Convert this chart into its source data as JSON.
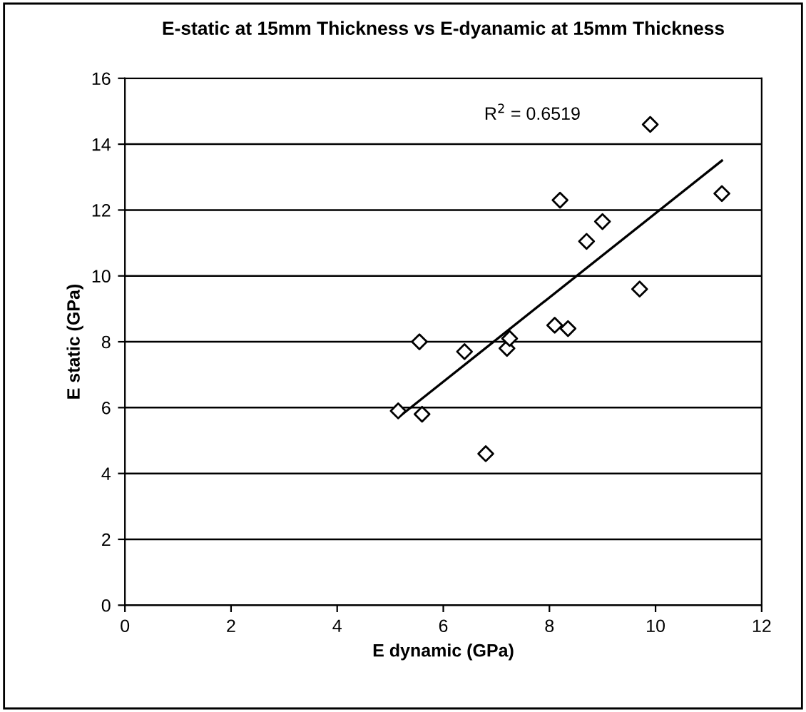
{
  "chart_data": {
    "type": "scatter",
    "title": "E-static at 15mm Thickness vs E-dyanamic at 15mm Thickness",
    "xlabel": "E dynamic (GPa)",
    "ylabel": "E static (GPa)",
    "series": [
      {
        "color": "#000000",
        "marker": "diamond",
        "x": [
          5.15,
          5.55,
          5.6,
          6.4,
          6.8,
          7.2,
          7.25,
          8.1,
          8.35,
          8.2,
          8.7,
          9.0,
          9.7,
          9.9,
          11.25
        ],
        "values": [
          5.9,
          8.0,
          5.8,
          7.7,
          4.6,
          7.8,
          8.1,
          8.5,
          8.4,
          12.3,
          11.05,
          11.65,
          9.6,
          14.6,
          12.5
        ]
      },
      {
        "type": "line",
        "color": "#000000",
        "marker": "none",
        "x": [
          5.15,
          11.25
        ],
        "values": [
          5.7,
          13.5
        ]
      }
    ],
    "annotations": [
      "R$^{2}$ = 0.6519"
    ],
    "xlim": [
      0,
      12
    ],
    "xticks": [
      0,
      2,
      4,
      6,
      8,
      10,
      12
    ],
    "ylim": [
      0,
      16
    ],
    "yticks": [
      0,
      2,
      4,
      6,
      8,
      10,
      12,
      14,
      16
    ],
    "grid": "y",
    "legend": false
  }
}
